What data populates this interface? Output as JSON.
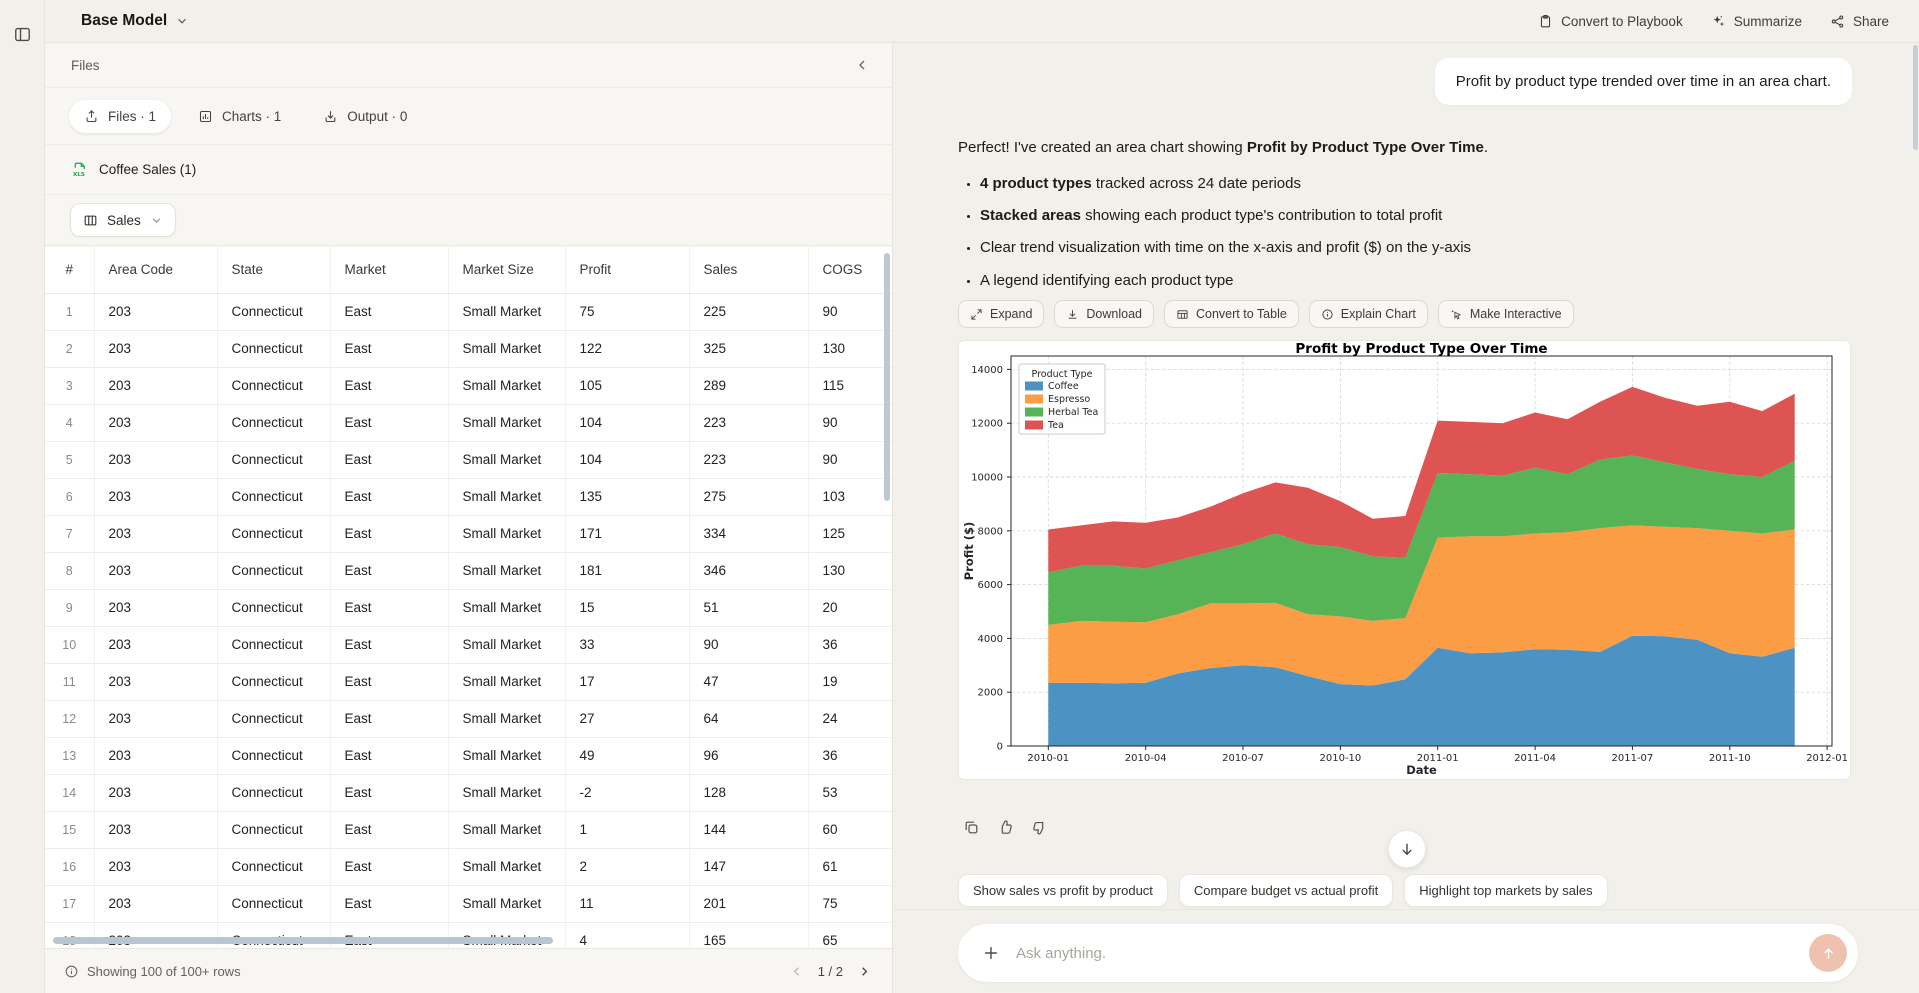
{
  "topbar": {
    "model_name": "Base Model",
    "convert_to_playbook": "Convert to Playbook",
    "summarize": "Summarize",
    "share": "Share"
  },
  "files_panel": {
    "title": "Files",
    "tabs": [
      {
        "label": "Files · 1"
      },
      {
        "label": "Charts · 1"
      },
      {
        "label": "Output · 0"
      }
    ],
    "file_name": "Coffee Sales (1)",
    "sheet_selector": "Sales",
    "table": {
      "columns": [
        "#",
        "Area Code",
        "State",
        "Market",
        "Market Size",
        "Profit",
        "Sales",
        "COGS"
      ],
      "rows": [
        [
          "1",
          "203",
          "Connecticut",
          "East",
          "Small Market",
          "75",
          "225",
          "90"
        ],
        [
          "2",
          "203",
          "Connecticut",
          "East",
          "Small Market",
          "122",
          "325",
          "130"
        ],
        [
          "3",
          "203",
          "Connecticut",
          "East",
          "Small Market",
          "105",
          "289",
          "115"
        ],
        [
          "4",
          "203",
          "Connecticut",
          "East",
          "Small Market",
          "104",
          "223",
          "90"
        ],
        [
          "5",
          "203",
          "Connecticut",
          "East",
          "Small Market",
          "104",
          "223",
          "90"
        ],
        [
          "6",
          "203",
          "Connecticut",
          "East",
          "Small Market",
          "135",
          "275",
          "103"
        ],
        [
          "7",
          "203",
          "Connecticut",
          "East",
          "Small Market",
          "171",
          "334",
          "125"
        ],
        [
          "8",
          "203",
          "Connecticut",
          "East",
          "Small Market",
          "181",
          "346",
          "130"
        ],
        [
          "9",
          "203",
          "Connecticut",
          "East",
          "Small Market",
          "15",
          "51",
          "20"
        ],
        [
          "10",
          "203",
          "Connecticut",
          "East",
          "Small Market",
          "33",
          "90",
          "36"
        ],
        [
          "11",
          "203",
          "Connecticut",
          "East",
          "Small Market",
          "17",
          "47",
          "19"
        ],
        [
          "12",
          "203",
          "Connecticut",
          "East",
          "Small Market",
          "27",
          "64",
          "24"
        ],
        [
          "13",
          "203",
          "Connecticut",
          "East",
          "Small Market",
          "49",
          "96",
          "36"
        ],
        [
          "14",
          "203",
          "Connecticut",
          "East",
          "Small Market",
          "-2",
          "128",
          "53"
        ],
        [
          "15",
          "203",
          "Connecticut",
          "East",
          "Small Market",
          "1",
          "144",
          "60"
        ],
        [
          "16",
          "203",
          "Connecticut",
          "East",
          "Small Market",
          "2",
          "147",
          "61"
        ],
        [
          "17",
          "203",
          "Connecticut",
          "East",
          "Small Market",
          "11",
          "201",
          "75"
        ],
        [
          "18",
          "203",
          "Connecticut",
          "East",
          "Small Market",
          "4",
          "165",
          "65"
        ]
      ]
    },
    "footer": {
      "status": "Showing 100 of 100+ rows",
      "page": "1 / 2"
    }
  },
  "chat": {
    "user_message": "Profit by product type trended over time in an area chart.",
    "response": {
      "intro_prefix": "Perfect! I've created an area chart showing ",
      "intro_bold": "Profit by Product Type Over Time",
      "intro_suffix": ".",
      "bullets": [
        {
          "bold": "4 product types",
          "text": " tracked across 24 date periods"
        },
        {
          "bold": "Stacked areas",
          "text": " showing each product type's contribution to total profit"
        },
        {
          "bold": "",
          "text": "Clear trend visualization with time on the x-axis and profit ($) on the y-axis"
        },
        {
          "bold": "",
          "text": "A legend identifying each product type"
        }
      ]
    },
    "chart_actions": [
      "Expand",
      "Download",
      "Convert to Table",
      "Explain Chart",
      "Make Interactive"
    ],
    "suggestions": [
      "Show sales vs profit by product",
      "Compare budget vs actual profit",
      "Highlight top markets by sales"
    ],
    "input_placeholder": "Ask anything."
  },
  "chart_data": {
    "type": "area",
    "stacked": true,
    "title": "Profit by Product Type Over Time",
    "xlabel": "Date",
    "ylabel": "Profit ($)",
    "legend_title": "Product Type",
    "legend_position": "upper-left",
    "grid": true,
    "ylim": [
      0,
      14500
    ],
    "y_ticks": [
      0,
      2000,
      4000,
      6000,
      8000,
      10000,
      12000,
      14000
    ],
    "x": [
      "2010-01",
      "2010-02",
      "2010-03",
      "2010-04",
      "2010-05",
      "2010-06",
      "2010-07",
      "2010-08",
      "2010-09",
      "2010-10",
      "2010-11",
      "2010-12",
      "2011-01",
      "2011-02",
      "2011-03",
      "2011-04",
      "2011-05",
      "2011-06",
      "2011-07",
      "2011-08",
      "2011-09",
      "2011-10",
      "2011-11",
      "2011-12"
    ],
    "x_ticks": [
      "2010-01",
      "2010-04",
      "2010-07",
      "2010-10",
      "2011-01",
      "2011-04",
      "2011-07",
      "2011-10",
      "2012-01"
    ],
    "series": [
      {
        "name": "Coffee",
        "color": "#4c92c3",
        "values": [
          2350,
          2350,
          2330,
          2350,
          2700,
          2900,
          3000,
          2930,
          2600,
          2300,
          2250,
          2480,
          3650,
          3450,
          3480,
          3600,
          3580,
          3500,
          4100,
          4080,
          3950,
          3450,
          3320,
          3650
        ]
      },
      {
        "name": "Espresso",
        "color": "#fb9d44",
        "values": [
          2150,
          2300,
          2290,
          2250,
          2200,
          2400,
          2300,
          2390,
          2300,
          2520,
          2400,
          2270,
          4100,
          4350,
          4320,
          4300,
          4370,
          4600,
          4100,
          4070,
          4150,
          4550,
          4580,
          4400
        ]
      },
      {
        "name": "Herbal Tea",
        "color": "#56b356",
        "values": [
          1950,
          2050,
          2080,
          2000,
          2000,
          1900,
          2200,
          2580,
          2600,
          2580,
          2400,
          2250,
          2400,
          2300,
          2250,
          2450,
          2150,
          2550,
          2600,
          2400,
          2200,
          2100,
          2100,
          2550
        ]
      },
      {
        "name": "Tea",
        "color": "#dd5453",
        "values": [
          1600,
          1500,
          1650,
          1700,
          1600,
          1700,
          1900,
          1900,
          2100,
          1700,
          1400,
          1550,
          1950,
          1950,
          1950,
          2050,
          2050,
          2150,
          2550,
          2400,
          2350,
          2700,
          2450,
          2500
        ]
      }
    ]
  }
}
